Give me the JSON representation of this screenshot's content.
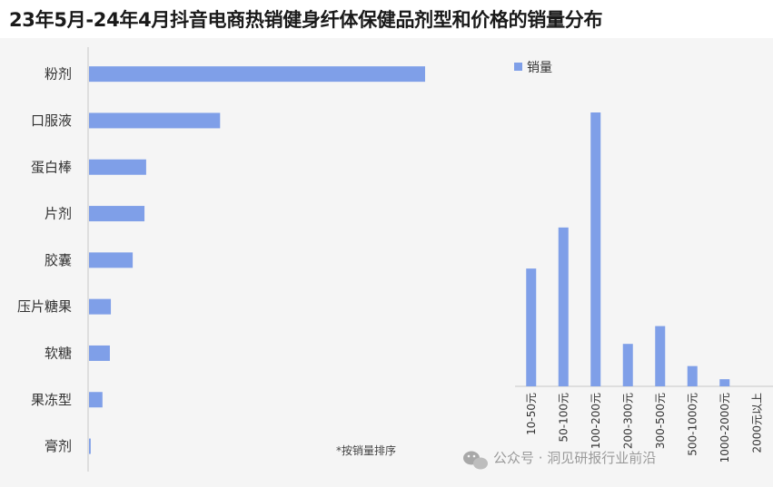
{
  "title": "23年5月-24年4月抖音电商热销健身纤体保健品剂型和价格的销量分布",
  "footnote": "*按销量排序",
  "watermark": "公众号 · 洞见研报行业前沿",
  "colors": {
    "bar": "#7f9fe8",
    "axis": "#c8c8c8",
    "background": "#f5f5f5"
  },
  "chart_data": [
    {
      "type": "bar",
      "orientation": "horizontal",
      "categories": [
        "粉剂",
        "口服液",
        "蛋白棒",
        "片剂",
        "胶囊",
        "压片糖果",
        "软糖",
        "果冻型",
        "膏剂"
      ],
      "values": [
        100,
        39,
        17,
        16.5,
        13,
        6.5,
        6.2,
        4,
        0.5
      ],
      "grid": false
    },
    {
      "type": "bar",
      "orientation": "vertical",
      "legend": "销量",
      "legend_position": "top",
      "categories": [
        "10-50元",
        "50-100元",
        "100-200元",
        "200-300元",
        "300-500元",
        "500-1000元",
        "1000-2000元",
        "2000元以上"
      ],
      "values": [
        43,
        58,
        100,
        15.5,
        22,
        7.4,
        2.6,
        0
      ],
      "grid": false
    }
  ]
}
